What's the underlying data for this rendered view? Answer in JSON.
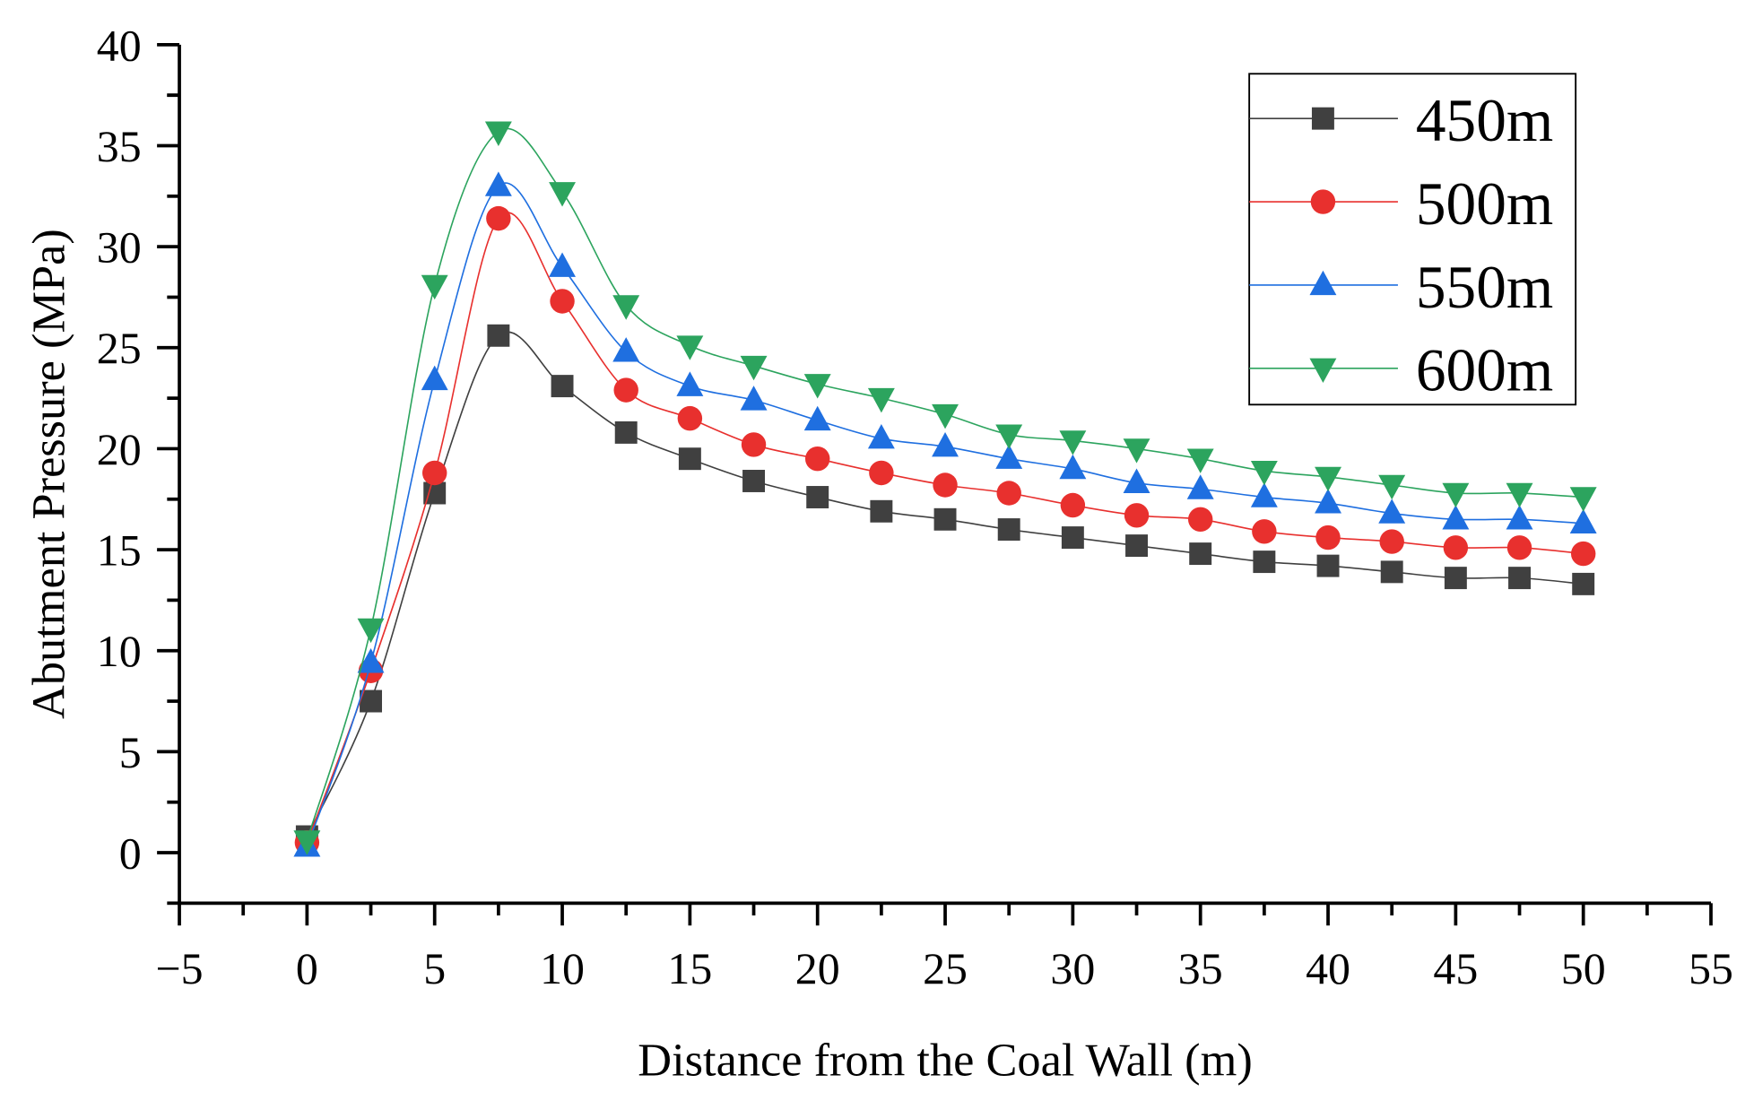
{
  "chart_data": {
    "type": "line",
    "title": "",
    "xlabel": "Distance from the Coal Wall (m)",
    "ylabel": "Abutment Pressure (MPa)",
    "xlim": [
      -5,
      55
    ],
    "ylim": [
      -2.5,
      40
    ],
    "xticks": [
      -5,
      0,
      5,
      10,
      15,
      20,
      25,
      30,
      35,
      40,
      45,
      50,
      55
    ],
    "xtick_labels": [
      "−5",
      "0",
      "5",
      "10",
      "15",
      "20",
      "25",
      "30",
      "35",
      "40",
      "45",
      "50",
      "55"
    ],
    "yticks": [
      0,
      5,
      10,
      15,
      20,
      25,
      30,
      35,
      40
    ],
    "ytick_labels": [
      "0",
      "5",
      "10",
      "15",
      "20",
      "25",
      "30",
      "35",
      "40"
    ],
    "grid": false,
    "legend_position": "top-right",
    "x": [
      0,
      2.5,
      5,
      7.5,
      10,
      12.5,
      15,
      17.5,
      20,
      22.5,
      25,
      27.5,
      30,
      32.5,
      35,
      37.5,
      40,
      42.5,
      45,
      47.5,
      50
    ],
    "series": [
      {
        "name": "450m",
        "color": "#404040",
        "marker": "square",
        "values": [
          0.8,
          7.5,
          17.8,
          25.6,
          23.1,
          20.8,
          19.5,
          18.4,
          17.6,
          16.9,
          16.5,
          16.0,
          15.6,
          15.2,
          14.8,
          14.4,
          14.2,
          13.9,
          13.6,
          13.6,
          13.3
        ]
      },
      {
        "name": "500m",
        "color": "#e8302e",
        "marker": "circle",
        "values": [
          0.5,
          9.0,
          18.8,
          31.4,
          27.3,
          22.9,
          21.5,
          20.2,
          19.5,
          18.8,
          18.2,
          17.8,
          17.2,
          16.7,
          16.5,
          15.9,
          15.6,
          15.4,
          15.1,
          15.1,
          14.8
        ]
      },
      {
        "name": "550m",
        "color": "#1f6fe0",
        "marker": "triangle-up",
        "values": [
          0.3,
          9.4,
          23.4,
          33.0,
          29.0,
          24.8,
          23.1,
          22.4,
          21.4,
          20.5,
          20.1,
          19.5,
          19.0,
          18.3,
          18.0,
          17.6,
          17.3,
          16.8,
          16.5,
          16.5,
          16.3
        ]
      },
      {
        "name": "600m",
        "color": "#2ca45e",
        "marker": "triangle-down",
        "values": [
          0.6,
          11.1,
          28.1,
          35.7,
          32.7,
          27.1,
          25.1,
          24.1,
          23.2,
          22.5,
          21.7,
          20.7,
          20.4,
          20.0,
          19.5,
          18.9,
          18.6,
          18.2,
          17.8,
          17.8,
          17.6
        ]
      }
    ]
  }
}
